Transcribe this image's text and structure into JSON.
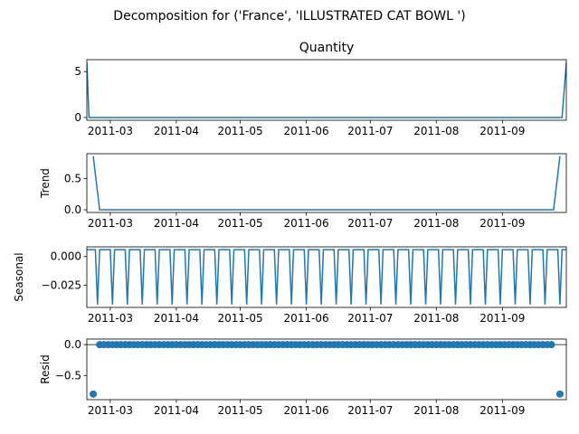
{
  "suptitle": "Decomposition for ('France', 'ILLUSTRATED CAT BOWL ')",
  "colors": {
    "line": "#1f77b4",
    "axis": "#000000",
    "background": "#ffffff",
    "zero_line": "#000000"
  },
  "chart_data": [
    {
      "type": "line",
      "title": "Quantity",
      "ylabel": "",
      "x_range": [
        "2011-02-18",
        "2011-10-01"
      ],
      "x_ticks": [
        "2011-03",
        "2011-04",
        "2011-05",
        "2011-06",
        "2011-07",
        "2011-08",
        "2011-09"
      ],
      "ylim": [
        -0.3,
        6.3
      ],
      "y_ticks": [
        0,
        5
      ],
      "y_tick_labels": [
        "0",
        "5"
      ],
      "series": [
        {
          "x": [
            "2011-02-18",
            "2011-02-19",
            "2011-09-29",
            "2011-10-01"
          ],
          "y": [
            6,
            0,
            0,
            6
          ]
        }
      ]
    },
    {
      "type": "line",
      "title": "",
      "ylabel": "Trend",
      "x_range": [
        "2011-02-18",
        "2011-10-01"
      ],
      "x_ticks": [
        "2011-03",
        "2011-04",
        "2011-05",
        "2011-06",
        "2011-07",
        "2011-08",
        "2011-09"
      ],
      "ylim": [
        -0.043,
        0.9
      ],
      "y_ticks": [
        0,
        0.5
      ],
      "y_tick_labels": [
        "0.0",
        "0.5"
      ],
      "series": [
        {
          "x": [
            "2011-02-21",
            "2011-02-24",
            "2011-09-25",
            "2011-09-28"
          ],
          "y": [
            0.86,
            0,
            0,
            0.86
          ]
        }
      ]
    },
    {
      "type": "line",
      "title": "",
      "ylabel": "Seasonal",
      "x_range": [
        "2011-02-18",
        "2011-10-01"
      ],
      "x_ticks": [
        "2011-03",
        "2011-04",
        "2011-05",
        "2011-06",
        "2011-07",
        "2011-08",
        "2011-09"
      ],
      "ylim": [
        -0.0445,
        0.0085
      ],
      "y_ticks": [
        0,
        -0.025
      ],
      "y_tick_labels": [
        "0.000",
        "−0.025"
      ],
      "pattern": {
        "start": "2011-02-18",
        "end": "2011-10-01",
        "period_days": 7,
        "values": [
          0.006,
          0.006,
          0.006,
          0.006,
          0.006,
          -0.042,
          0.006
        ]
      }
    },
    {
      "type": "scatter",
      "title": "",
      "ylabel": "Resid",
      "x_range": [
        "2011-02-18",
        "2011-10-01"
      ],
      "x_ticks": [
        "2011-03",
        "2011-04",
        "2011-05",
        "2011-06",
        "2011-07",
        "2011-08",
        "2011-09"
      ],
      "ylim": [
        -0.89,
        0.09
      ],
      "y_ticks": [
        0,
        -0.5
      ],
      "y_tick_labels": [
        "0.0",
        "−0.5"
      ],
      "zero_line": true,
      "outliers": [
        {
          "x": "2011-02-21",
          "y": -0.8
        },
        {
          "x": "2011-09-28",
          "y": -0.8
        }
      ],
      "baseline": {
        "start": "2011-02-24",
        "end": "2011-09-25",
        "step_days": 2,
        "y": 0
      }
    }
  ]
}
